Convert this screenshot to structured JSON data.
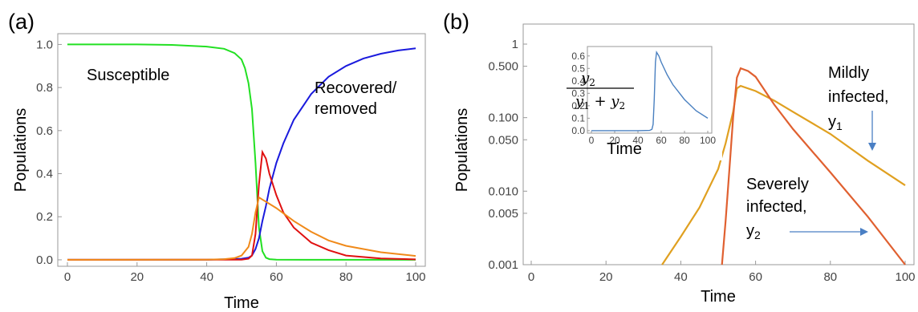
{
  "chart_data": [
    {
      "panel_label": "(a)",
      "type": "line",
      "xlabel": "Time",
      "ylabel": "Populations",
      "xlim": [
        0,
        100
      ],
      "ylim": [
        -0.03,
        1.05
      ],
      "xticks": [
        "0",
        "20",
        "40",
        "60",
        "80",
        "100"
      ],
      "yticks": [
        "0.0",
        "0.2",
        "0.4",
        "0.6",
        "0.8",
        "1.0"
      ],
      "annotations": [
        "Susceptible",
        "Recovered/",
        "removed"
      ],
      "series": [
        {
          "color": "#22e022",
          "x": [
            0,
            10,
            20,
            30,
            40,
            45,
            48,
            50,
            51,
            52,
            53,
            54,
            55,
            56,
            57,
            58,
            60,
            70,
            80,
            90,
            100
          ],
          "y": [
            1.0,
            1.0,
            1.0,
            0.998,
            0.99,
            0.98,
            0.96,
            0.93,
            0.89,
            0.82,
            0.7,
            0.45,
            0.15,
            0.04,
            0.01,
            0.003,
            0.001,
            0,
            0,
            0,
            0
          ]
        },
        {
          "color": "#1a1add",
          "x": [
            0,
            40,
            50,
            52,
            53,
            54,
            55,
            56,
            57,
            58,
            60,
            62,
            65,
            70,
            75,
            80,
            85,
            90,
            95,
            100
          ],
          "y": [
            0,
            0,
            0.005,
            0.01,
            0.02,
            0.05,
            0.1,
            0.18,
            0.25,
            0.33,
            0.45,
            0.54,
            0.65,
            0.77,
            0.85,
            0.9,
            0.935,
            0.957,
            0.972,
            0.982
          ]
        },
        {
          "color": "#e01010",
          "x": [
            0,
            50,
            52,
            53,
            54,
            55,
            56,
            57,
            58,
            60,
            62,
            65,
            70,
            75,
            80,
            90,
            100
          ],
          "y": [
            0,
            0.001,
            0.005,
            0.02,
            0.12,
            0.35,
            0.5,
            0.47,
            0.4,
            0.3,
            0.22,
            0.15,
            0.08,
            0.045,
            0.02,
            0.006,
            0.002
          ]
        },
        {
          "color": "#f08a1a",
          "x": [
            0,
            40,
            45,
            48,
            50,
            52,
            53,
            54,
            55,
            56,
            58,
            60,
            65,
            70,
            75,
            80,
            90,
            100
          ],
          "y": [
            0,
            0.001,
            0.003,
            0.008,
            0.02,
            0.06,
            0.12,
            0.22,
            0.29,
            0.28,
            0.26,
            0.24,
            0.18,
            0.13,
            0.09,
            0.065,
            0.035,
            0.018
          ]
        }
      ]
    },
    {
      "panel_label": "(b)",
      "type": "line",
      "yscale": "log",
      "xlabel": "Time",
      "ylabel": "Populations",
      "xlim": [
        0,
        100
      ],
      "ylim": [
        0.001,
        1
      ],
      "xticks": [
        "0",
        "20",
        "40",
        "60",
        "80",
        "100"
      ],
      "yticks": [
        {
          "value": 1,
          "label": "1"
        },
        {
          "value": 0.5,
          "label": "0.500"
        },
        {
          "value": 0.1,
          "label": "0.100"
        },
        {
          "value": 0.05,
          "label": "0.050"
        },
        {
          "value": 0.01,
          "label": "0.010"
        },
        {
          "value": 0.005,
          "label": "0.005"
        },
        {
          "value": 0.001,
          "label": "0.001"
        }
      ],
      "annotations": {
        "mild": [
          "Mildly",
          "infected,",
          "y"
        ],
        "mild_sub": "1",
        "severe": [
          "Severely",
          "infected,",
          "y"
        ],
        "severe_sub": "2"
      },
      "arrow_color": "#4a7fc4",
      "series": [
        {
          "color": "#e0a020",
          "x": [
            35,
            40,
            45,
            50,
            52,
            54,
            55,
            56,
            60,
            65,
            70,
            80,
            90,
            100
          ],
          "y": [
            0.001,
            0.0024,
            0.006,
            0.02,
            0.045,
            0.12,
            0.25,
            0.27,
            0.23,
            0.17,
            0.12,
            0.06,
            0.026,
            0.012
          ]
        },
        {
          "color": "#e06030",
          "x": [
            51,
            52,
            53,
            54,
            55,
            56,
            58,
            60,
            65,
            70,
            80,
            90,
            100
          ],
          "y": [
            0.001,
            0.004,
            0.02,
            0.1,
            0.35,
            0.47,
            0.43,
            0.36,
            0.15,
            0.07,
            0.018,
            0.0045,
            0.001
          ]
        }
      ],
      "inset": {
        "xlabel": "Time",
        "ylabel_num": "y",
        "ylabel_num_sub": "2",
        "ylabel_den": [
          "y",
          "1",
          " + ",
          "y",
          "2"
        ],
        "xlim": [
          0,
          100
        ],
        "ylim": [
          -0.02,
          0.65
        ],
        "xticks": [
          "0",
          "20",
          "40",
          "60",
          "80",
          "100"
        ],
        "yticks": [
          "0.0",
          "0.1",
          "0.2",
          "0.3",
          "0.4",
          "0.5",
          "0.6"
        ],
        "series": [
          {
            "color": "#4a80c0",
            "x": [
              0,
              40,
              50,
              52,
              53,
              54,
              55,
              56,
              58,
              60,
              65,
              70,
              80,
              90,
              100
            ],
            "y": [
              0,
              0,
              0.002,
              0.01,
              0.05,
              0.25,
              0.55,
              0.63,
              0.6,
              0.55,
              0.45,
              0.37,
              0.25,
              0.16,
              0.1
            ]
          }
        ]
      }
    }
  ]
}
